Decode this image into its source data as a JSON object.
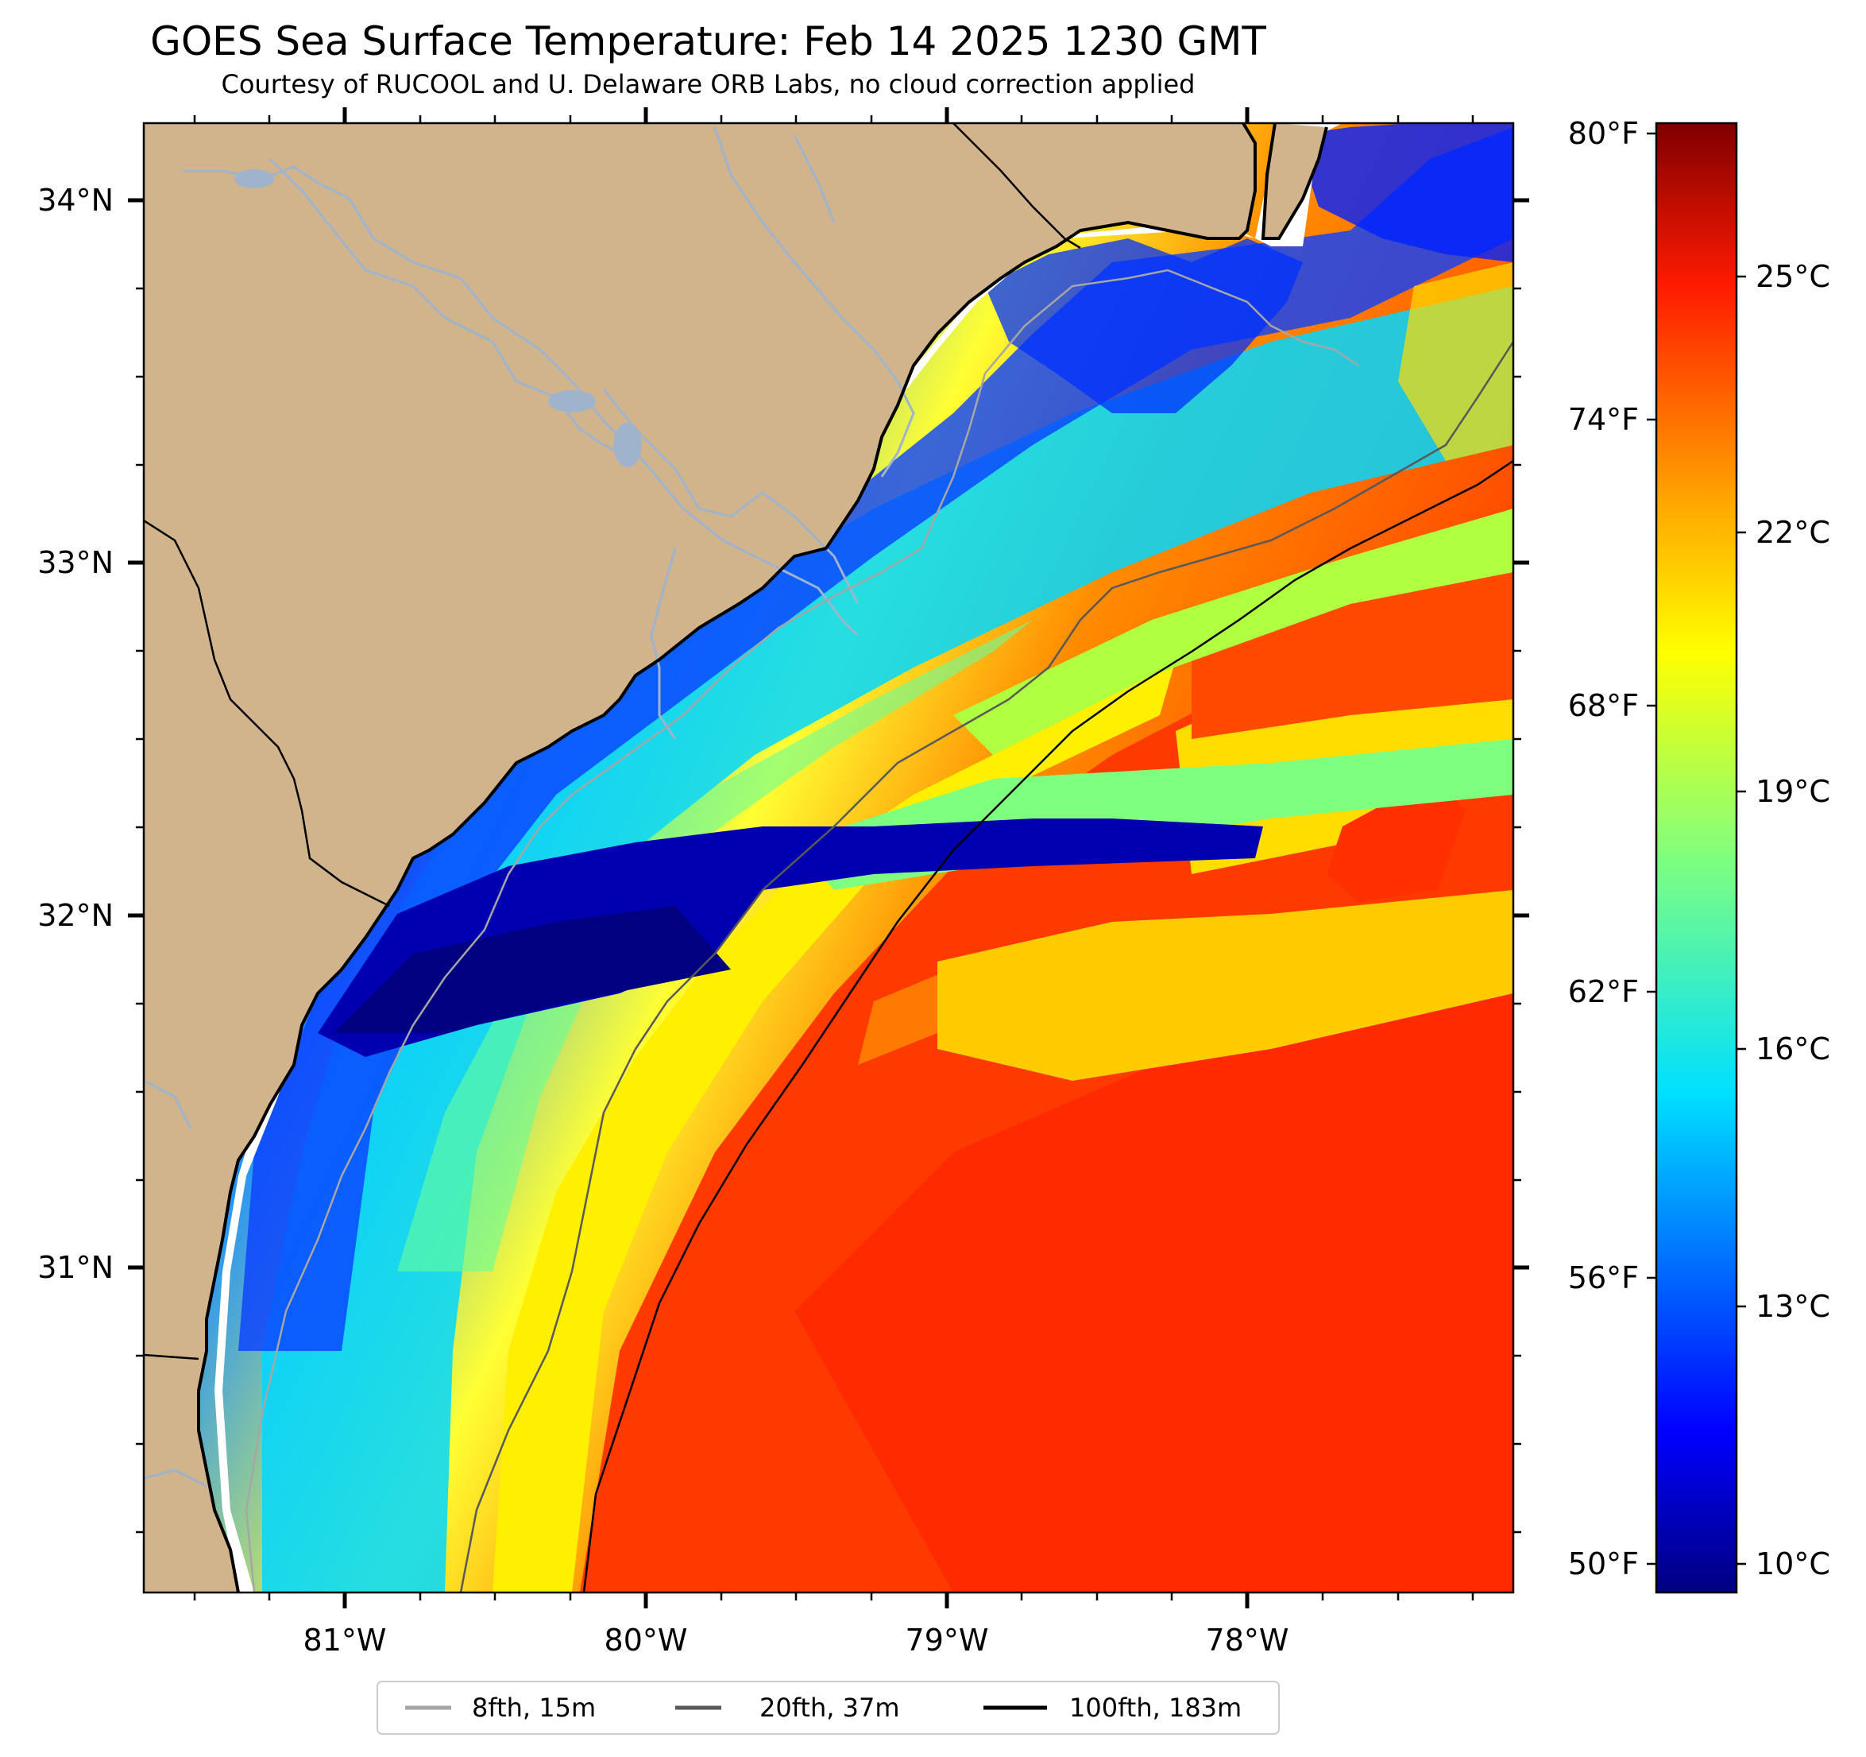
{
  "title": "GOES Sea Surface Temperature: Feb 14 2025 1230 GMT",
  "subtitle": "Courtesy of RUCOOL and U. Delaware ORB Labs, no cloud correction applied",
  "map": {
    "land_color": "#d2b48c",
    "river_color": "#9fb4cc",
    "lat_labels": [
      "34°N",
      "33°N",
      "32°N",
      "31°N"
    ],
    "lon_labels": [
      "81°W",
      "80°W",
      "79°W",
      "78°W"
    ]
  },
  "colorbar": {
    "fahrenheit_labels": [
      "80°F",
      "74°F",
      "68°F",
      "62°F",
      "56°F",
      "50°F"
    ],
    "celsius_labels": [
      "25°C",
      "22°C",
      "19°C",
      "16°C",
      "13°C",
      "10°C"
    ],
    "colormap": "jet"
  },
  "legend": {
    "items": [
      {
        "label": "8fth, 15m",
        "color": "#a6a6a6"
      },
      {
        "label": "20fth, 37m",
        "color": "#595959"
      },
      {
        "label": "100fth, 183m",
        "color": "#000000"
      }
    ]
  }
}
